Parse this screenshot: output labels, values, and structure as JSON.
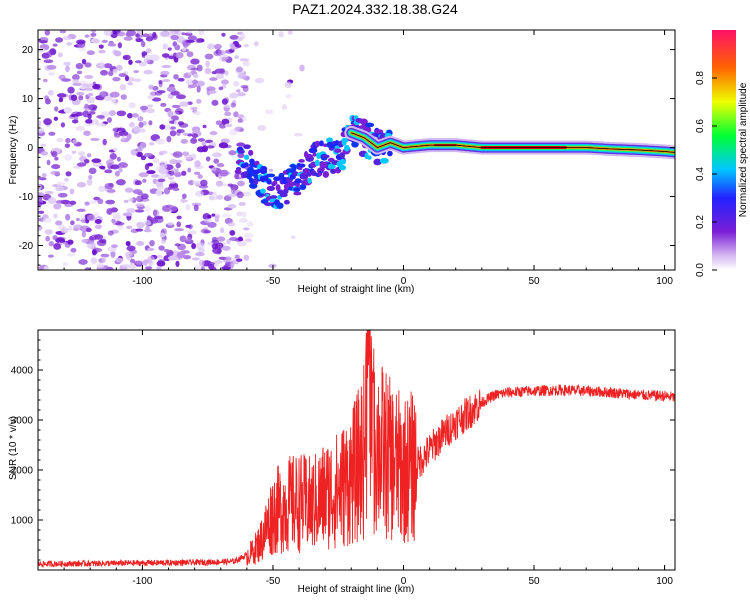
{
  "title": "PAZ1.2024.332.18.38.G24",
  "colors": {
    "snr_line": "#ee2222",
    "trace_core": "#dd0000",
    "background": "#ffffff"
  },
  "chart_data": [
    {
      "type": "heatmap",
      "title": "PAZ1.2024.332.18.38.G24",
      "xlabel": "Height of straight line (km)",
      "ylabel": "Frequency (Hz)",
      "xlim": [
        -140,
        104
      ],
      "ylim": [
        -25,
        24
      ],
      "xticks": [
        -100,
        -50,
        0,
        50,
        100
      ],
      "yticks": [
        -20,
        -10,
        0,
        10,
        20
      ],
      "colorbar": {
        "label": "Normalized spectral amplitude",
        "range": [
          0,
          1
        ],
        "ticks": [
          "0.0",
          "0.2",
          "0.4",
          "0.6",
          "0.8"
        ],
        "colormap": "rainbow"
      },
      "trace": {
        "x": [
          -62,
          -58,
          -55,
          -50,
          -45,
          -40,
          -35,
          -30,
          -25,
          -20,
          -15,
          -10,
          -5,
          0,
          10,
          20,
          30,
          40,
          50,
          60,
          70,
          80,
          90,
          100,
          104
        ],
        "y": [
          -2,
          -4,
          -7,
          -9,
          -8,
          -6,
          -3,
          -2,
          -2,
          3,
          2,
          0,
          1,
          0,
          0.5,
          0.5,
          0,
          0,
          0,
          0,
          0,
          -0.3,
          -0.5,
          -0.8,
          -1
        ]
      }
    },
    {
      "type": "line",
      "xlabel": "Height of straight line (km)",
      "ylabel": "SNR (10 * v/v)",
      "xlim": [
        -140,
        104
      ],
      "ylim": [
        0,
        4800
      ],
      "xticks": [
        -100,
        -50,
        0,
        50,
        100
      ],
      "yticks": [
        1000,
        2000,
        3000,
        4000
      ],
      "series": [
        {
          "x": [
            -140,
            -120,
            -100,
            -80,
            -65,
            -58,
            -55,
            -52,
            -50,
            -48,
            -45,
            -40,
            -35,
            -30,
            -25,
            -20,
            -18,
            -15,
            -13,
            -12,
            -10,
            -5,
            0,
            5,
            10,
            15,
            20,
            25,
            30,
            35,
            40,
            50,
            60,
            70,
            80,
            90,
            100,
            104
          ],
          "y": [
            120,
            130,
            140,
            150,
            170,
            350,
            550,
            900,
            1150,
            1200,
            1300,
            1350,
            1300,
            1500,
            1600,
            1850,
            2000,
            2400,
            4800,
            2600,
            2500,
            2200,
            2000,
            2100,
            2400,
            2700,
            2950,
            3150,
            3350,
            3500,
            3550,
            3580,
            3600,
            3580,
            3550,
            3500,
            3480,
            3450
          ]
        }
      ]
    }
  ]
}
